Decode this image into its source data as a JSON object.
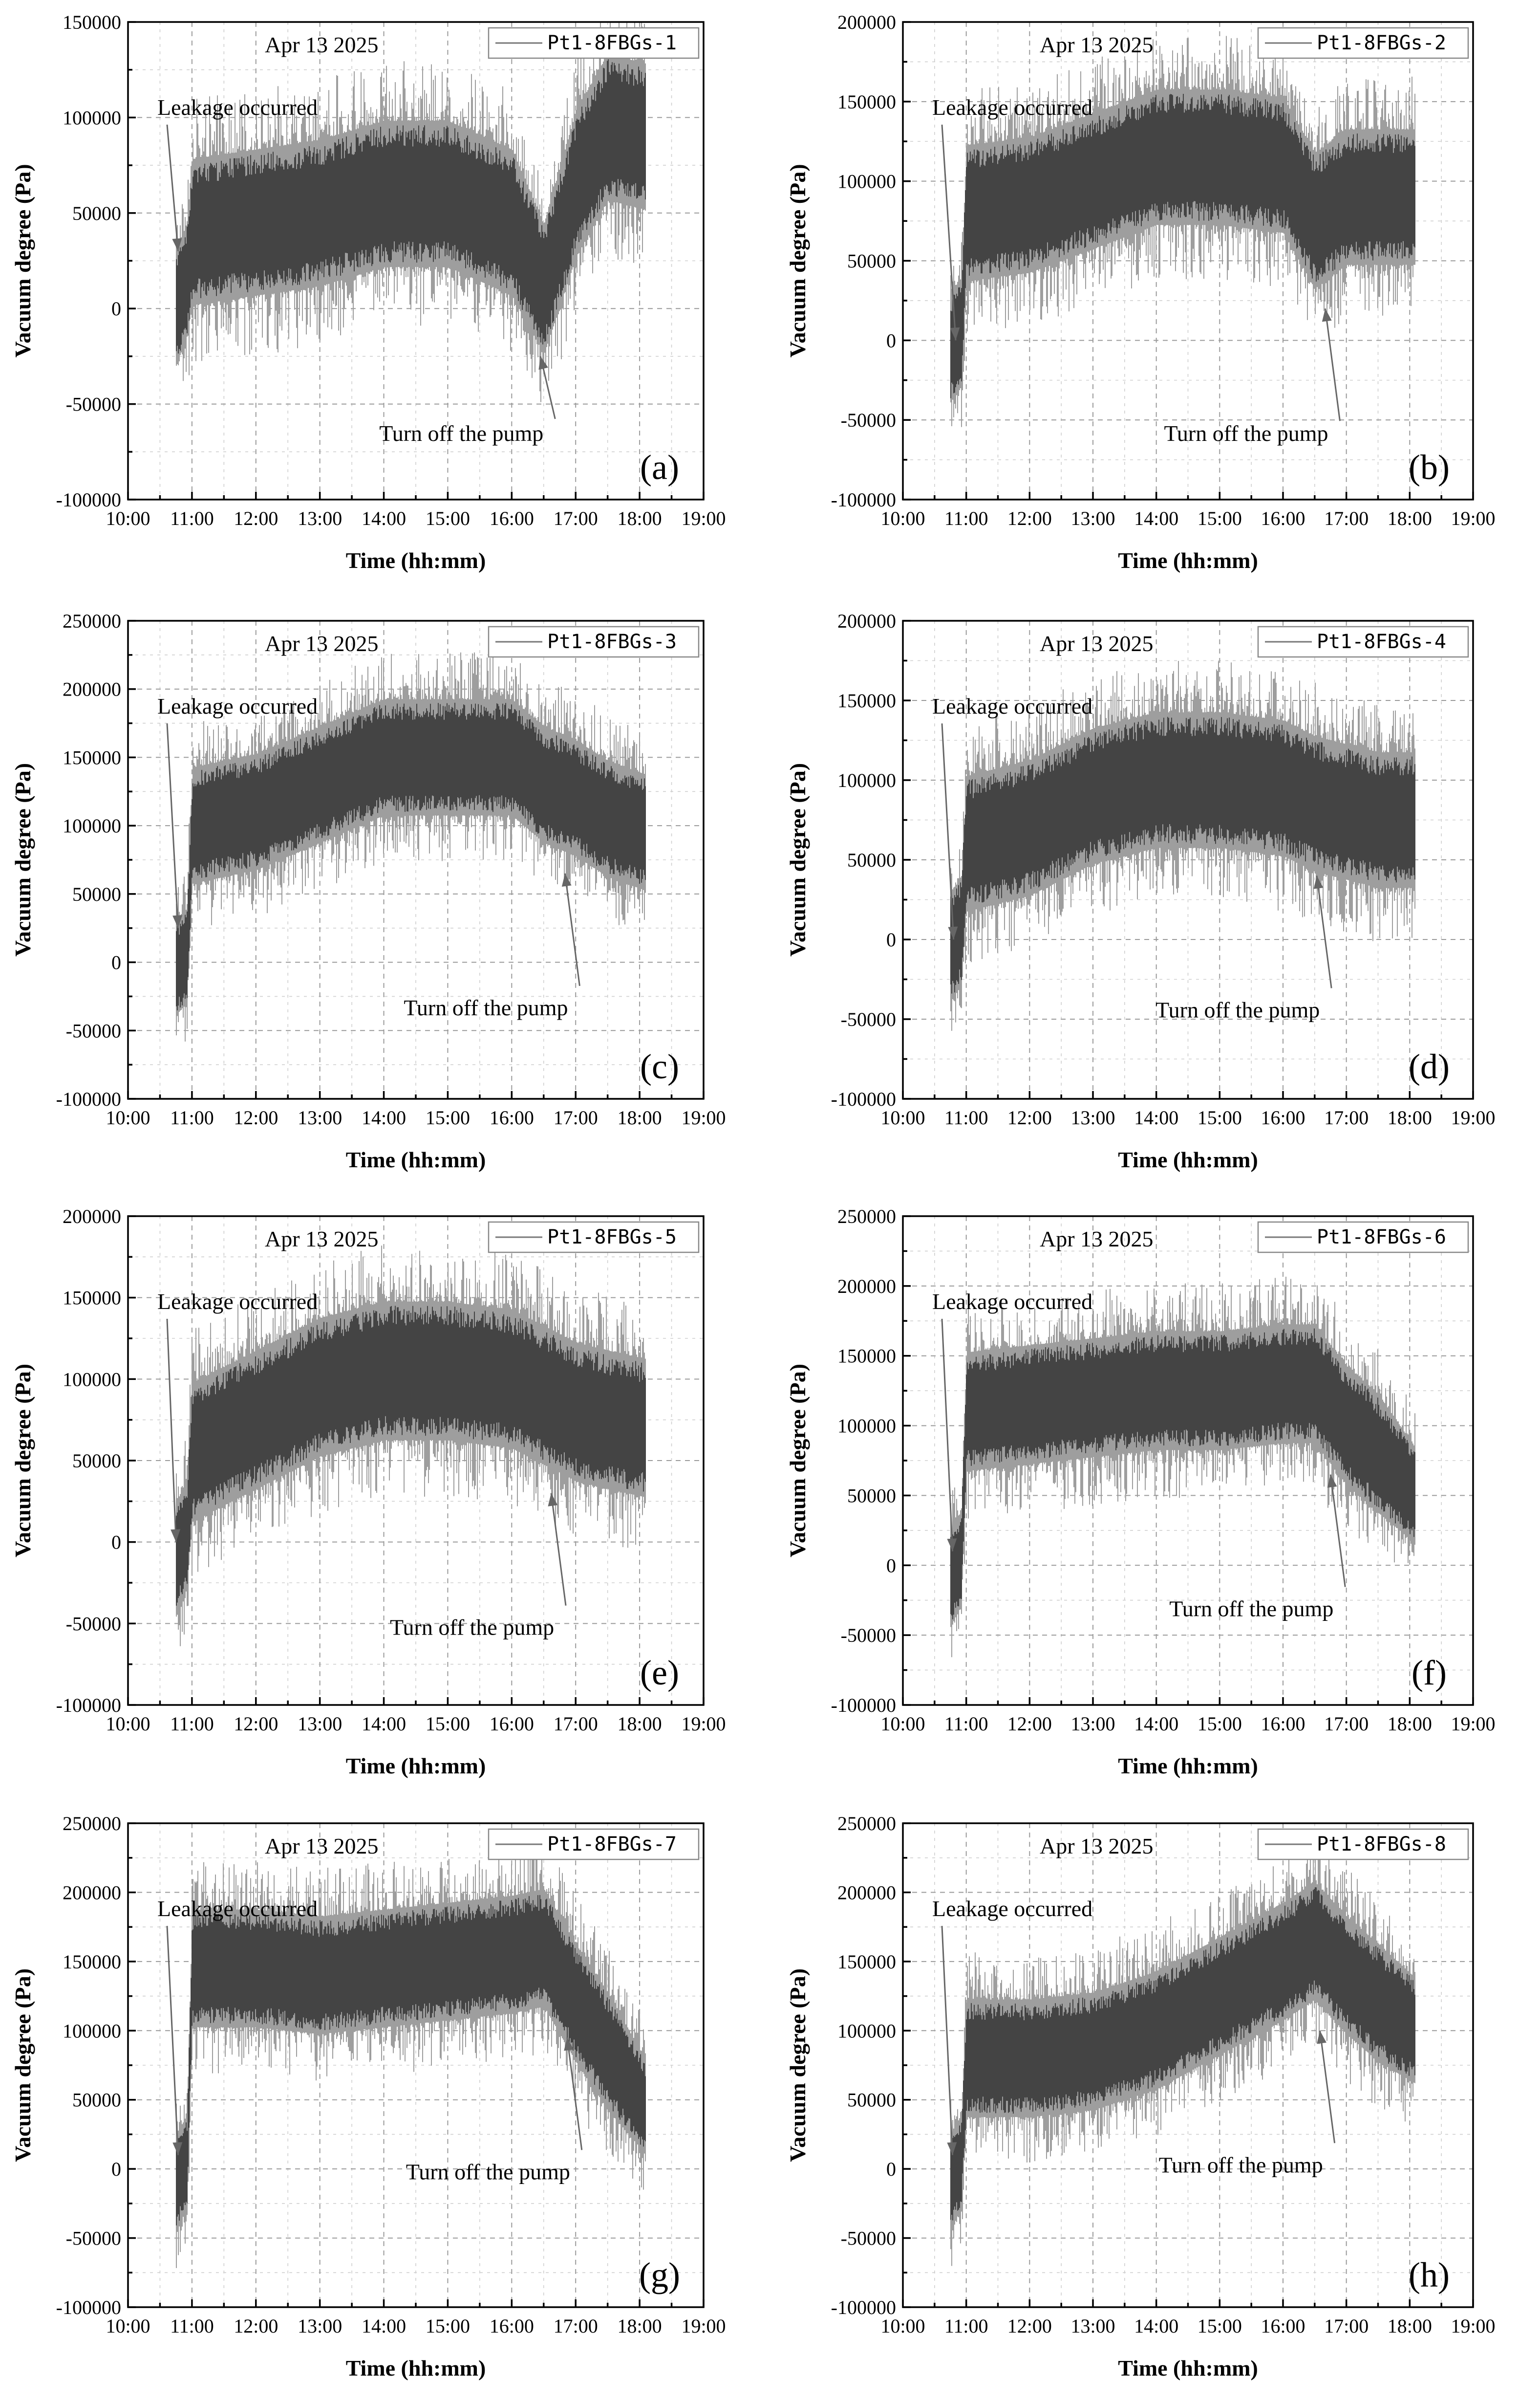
{
  "chart_data": [
    {
      "panel": "(a)",
      "type": "line",
      "date": "Apr 13 2025",
      "series_name": "Pt1-8FBGs-1",
      "xlabel": "Time (hh:mm)",
      "ylabel": "Vacuum degree (Pa)",
      "xlim": [
        "10:00",
        "19:00"
      ],
      "ylim": [
        -100000,
        150000
      ],
      "x_ticks": [
        "10:00",
        "11:00",
        "12:00",
        "13:00",
        "14:00",
        "15:00",
        "16:00",
        "17:00",
        "18:00",
        "19:00"
      ],
      "y_ticks": [
        -100000,
        -50000,
        0,
        50000,
        100000,
        150000
      ],
      "annotations": [
        {
          "text": "Leakage occurred",
          "x": "10:47",
          "y": 30000
        },
        {
          "text": "Turn off the pump",
          "x": "16:27",
          "y": -25000
        }
      ],
      "series": [
        {
          "name": "Pt1-8FBGs-1",
          "x": [
            "10:45",
            "10:55",
            "11:00",
            "12:00",
            "13:00",
            "14:00",
            "15:00",
            "16:00",
            "16:30",
            "17:00",
            "17:30",
            "18:05"
          ],
          "center": [
            0,
            15000,
            40000,
            45000,
            50000,
            60000,
            60000,
            45000,
            10000,
            65000,
            95000,
            90000
          ],
          "spread": [
            35000,
            35000,
            45000,
            45000,
            45000,
            45000,
            45000,
            45000,
            40000,
            45000,
            45000,
            45000
          ]
        }
      ]
    },
    {
      "panel": "(b)",
      "type": "line",
      "date": "Apr 13 2025",
      "series_name": "Pt1-8FBGs-2",
      "xlabel": "Time (hh:mm)",
      "ylabel": "Vacuum degree (Pa)",
      "xlim": [
        "10:00",
        "19:00"
      ],
      "ylim": [
        -100000,
        200000
      ],
      "x_ticks": [
        "10:00",
        "11:00",
        "12:00",
        "13:00",
        "14:00",
        "15:00",
        "16:00",
        "17:00",
        "18:00",
        "19:00"
      ],
      "y_ticks": [
        -100000,
        -50000,
        0,
        50000,
        100000,
        150000,
        200000
      ],
      "annotations": [
        {
          "text": "Leakage occurred",
          "x": "10:50",
          "y": 0
        },
        {
          "text": "Turn off the pump",
          "x": "16:40",
          "y": 20000
        }
      ],
      "series": [
        {
          "name": "Pt1-8FBGs-2",
          "x": [
            "10:45",
            "10:55",
            "11:00",
            "12:00",
            "13:00",
            "14:00",
            "15:00",
            "16:00",
            "16:30",
            "17:00",
            "17:30",
            "18:05"
          ],
          "center": [
            -5000,
            5000,
            80000,
            85000,
            100000,
            115000,
            115000,
            110000,
            75000,
            90000,
            90000,
            90000
          ],
          "spread": [
            40000,
            40000,
            50000,
            50000,
            50000,
            50000,
            50000,
            50000,
            50000,
            50000,
            50000,
            50000
          ]
        }
      ]
    },
    {
      "panel": "(c)",
      "type": "line",
      "date": "Apr 13 2025",
      "series_name": "Pt1-8FBGs-3",
      "xlabel": "Time (hh:mm)",
      "ylabel": "Vacuum degree (Pa)",
      "xlim": [
        "10:00",
        "19:00"
      ],
      "ylim": [
        -100000,
        250000
      ],
      "x_ticks": [
        "10:00",
        "11:00",
        "12:00",
        "13:00",
        "14:00",
        "15:00",
        "16:00",
        "17:00",
        "18:00",
        "19:00"
      ],
      "y_ticks": [
        -100000,
        -50000,
        0,
        50000,
        100000,
        150000,
        200000,
        250000
      ],
      "annotations": [
        {
          "text": "Leakage occurred",
          "x": "10:47",
          "y": 25000
        },
        {
          "text": "Turn off the pump",
          "x": "16:50",
          "y": 65000
        }
      ],
      "series": [
        {
          "name": "Pt1-8FBGs-3",
          "x": [
            "10:45",
            "10:55",
            "11:00",
            "12:00",
            "13:00",
            "14:00",
            "15:00",
            "16:00",
            "16:30",
            "17:00",
            "17:30",
            "18:05"
          ],
          "center": [
            -5000,
            5000,
            100000,
            110000,
            130000,
            150000,
            150000,
            150000,
            130000,
            120000,
            105000,
            95000
          ],
          "spread": [
            40000,
            40000,
            50000,
            50000,
            50000,
            50000,
            50000,
            50000,
            50000,
            50000,
            50000,
            50000
          ]
        }
      ]
    },
    {
      "panel": "(d)",
      "type": "line",
      "date": "Apr 13 2025",
      "series_name": "Pt1-8FBGs-4",
      "xlabel": "Time (hh:mm)",
      "ylabel": "Vacuum degree (Pa)",
      "xlim": [
        "10:00",
        "19:00"
      ],
      "ylim": [
        -100000,
        200000
      ],
      "x_ticks": [
        "10:00",
        "11:00",
        "12:00",
        "13:00",
        "14:00",
        "15:00",
        "16:00",
        "17:00",
        "18:00",
        "19:00"
      ],
      "y_ticks": [
        -100000,
        -50000,
        0,
        50000,
        100000,
        150000,
        200000
      ],
      "annotations": [
        {
          "text": "Leakage occurred",
          "x": "10:48",
          "y": 0
        },
        {
          "text": "Turn off the pump",
          "x": "16:32",
          "y": 40000
        }
      ],
      "series": [
        {
          "name": "Pt1-8FBGs-4",
          "x": [
            "10:45",
            "10:55",
            "11:00",
            "12:00",
            "13:00",
            "14:00",
            "15:00",
            "16:00",
            "16:30",
            "17:00",
            "17:30",
            "18:05"
          ],
          "center": [
            -5000,
            5000,
            60000,
            70000,
            90000,
            100000,
            100000,
            95000,
            85000,
            80000,
            75000,
            75000
          ],
          "spread": [
            40000,
            40000,
            50000,
            50000,
            50000,
            50000,
            50000,
            50000,
            50000,
            50000,
            50000,
            50000
          ]
        }
      ]
    },
    {
      "panel": "(e)",
      "type": "line",
      "date": "Apr 13 2025",
      "series_name": "Pt1-8FBGs-5",
      "xlabel": "Time (hh:mm)",
      "ylabel": "Vacuum degree (Pa)",
      "xlim": [
        "10:00",
        "19:00"
      ],
      "ylim": [
        -100000,
        200000
      ],
      "x_ticks": [
        "10:00",
        "11:00",
        "12:00",
        "13:00",
        "14:00",
        "15:00",
        "16:00",
        "17:00",
        "18:00",
        "19:00"
      ],
      "y_ticks": [
        -100000,
        -50000,
        0,
        50000,
        100000,
        150000,
        200000
      ],
      "annotations": [
        {
          "text": "Leakage occurred",
          "x": "10:45",
          "y": 0
        },
        {
          "text": "Turn off the pump",
          "x": "16:37",
          "y": 30000
        }
      ],
      "series": [
        {
          "name": "Pt1-8FBGs-5",
          "x": [
            "10:45",
            "10:55",
            "11:00",
            "12:00",
            "13:00",
            "14:00",
            "15:00",
            "16:00",
            "16:30",
            "17:00",
            "17:30",
            "18:05"
          ],
          "center": [
            -10000,
            5000,
            55000,
            75000,
            95000,
            105000,
            105000,
            100000,
            90000,
            80000,
            75000,
            70000
          ],
          "spread": [
            40000,
            40000,
            50000,
            50000,
            50000,
            50000,
            50000,
            50000,
            50000,
            50000,
            50000,
            50000
          ]
        }
      ]
    },
    {
      "panel": "(f)",
      "type": "line",
      "date": "Apr 13 2025",
      "series_name": "Pt1-8FBGs-6",
      "xlabel": "Time (hh:mm)",
      "ylabel": "Vacuum degree (Pa)",
      "xlim": [
        "10:00",
        "19:00"
      ],
      "ylim": [
        -100000,
        250000
      ],
      "x_ticks": [
        "10:00",
        "11:00",
        "12:00",
        "13:00",
        "14:00",
        "15:00",
        "16:00",
        "17:00",
        "18:00",
        "19:00"
      ],
      "y_ticks": [
        -100000,
        -50000,
        0,
        50000,
        100000,
        150000,
        200000,
        250000
      ],
      "annotations": [
        {
          "text": "Leakage occurred",
          "x": "10:47",
          "y": 10000
        },
        {
          "text": "Turn off the pump",
          "x": "16:45",
          "y": 65000
        }
      ],
      "series": [
        {
          "name": "Pt1-8FBGs-6",
          "x": [
            "10:45",
            "10:55",
            "11:00",
            "12:00",
            "13:00",
            "14:00",
            "15:00",
            "16:00",
            "16:30",
            "17:00",
            "17:30",
            "18:05"
          ],
          "center": [
            -10000,
            5000,
            110000,
            115000,
            120000,
            125000,
            125000,
            130000,
            130000,
            100000,
            80000,
            50000
          ],
          "spread": [
            40000,
            40000,
            50000,
            50000,
            50000,
            50000,
            50000,
            50000,
            50000,
            50000,
            50000,
            40000
          ]
        }
      ]
    },
    {
      "panel": "(g)",
      "type": "line",
      "date": "Apr 13 2025",
      "series_name": "Pt1-8FBGs-7",
      "xlabel": "Time (hh:mm)",
      "ylabel": "Vacuum degree (Pa)",
      "xlim": [
        "10:00",
        "19:00"
      ],
      "ylim": [
        -100000,
        250000
      ],
      "x_ticks": [
        "10:00",
        "11:00",
        "12:00",
        "13:00",
        "14:00",
        "15:00",
        "16:00",
        "17:00",
        "18:00",
        "19:00"
      ],
      "y_ticks": [
        -100000,
        -50000,
        0,
        50000,
        100000,
        150000,
        200000,
        250000
      ],
      "annotations": [
        {
          "text": "Leakage occurred",
          "x": "10:47",
          "y": 10000
        },
        {
          "text": "Turn off the pump",
          "x": "16:52",
          "y": 95000
        }
      ],
      "series": [
        {
          "name": "Pt1-8FBGs-7",
          "x": [
            "10:45",
            "10:55",
            "11:00",
            "12:00",
            "13:00",
            "14:00",
            "15:00",
            "16:00",
            "16:30",
            "17:00",
            "17:30",
            "18:05"
          ],
          "center": [
            -10000,
            5000,
            145000,
            145000,
            140000,
            145000,
            150000,
            155000,
            160000,
            120000,
            85000,
            45000
          ],
          "spread": [
            40000,
            40000,
            50000,
            50000,
            50000,
            50000,
            50000,
            50000,
            50000,
            50000,
            50000,
            40000
          ]
        }
      ]
    },
    {
      "panel": "(h)",
      "type": "line",
      "date": "Apr 13 2025",
      "series_name": "Pt1-8FBGs-8",
      "xlabel": "Time (hh:mm)",
      "ylabel": "Vacuum degree (Pa)",
      "xlim": [
        "10:00",
        "19:00"
      ],
      "ylim": [
        -100000,
        250000
      ],
      "x_ticks": [
        "10:00",
        "11:00",
        "12:00",
        "13:00",
        "14:00",
        "15:00",
        "16:00",
        "17:00",
        "18:00",
        "19:00"
      ],
      "y_ticks": [
        -100000,
        -50000,
        0,
        50000,
        100000,
        150000,
        200000,
        250000
      ],
      "annotations": [
        {
          "text": "Leakage occurred",
          "x": "10:47",
          "y": 10000
        },
        {
          "text": "Turn off the pump",
          "x": "16:35",
          "y": 100000
        }
      ],
      "series": [
        {
          "name": "Pt1-8FBGs-8",
          "x": [
            "10:45",
            "10:55",
            "11:00",
            "12:00",
            "13:00",
            "14:00",
            "15:00",
            "16:00",
            "16:30",
            "17:00",
            "17:30",
            "18:05"
          ],
          "center": [
            -10000,
            5000,
            80000,
            80000,
            85000,
            100000,
            125000,
            150000,
            165000,
            140000,
            120000,
            100000
          ],
          "spread": [
            40000,
            40000,
            50000,
            50000,
            50000,
            50000,
            50000,
            50000,
            50000,
            50000,
            50000,
            45000
          ]
        }
      ]
    }
  ]
}
